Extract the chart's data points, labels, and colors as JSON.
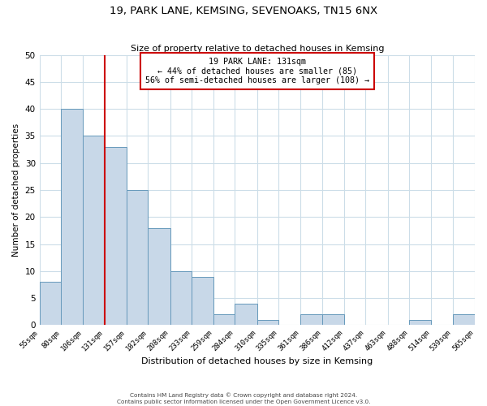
{
  "title_line1": "19, PARK LANE, KEMSING, SEVENOAKS, TN15 6NX",
  "title_line2": "Size of property relative to detached houses in Kemsing",
  "xlabel": "Distribution of detached houses by size in Kemsing",
  "ylabel": "Number of detached properties",
  "bin_edges": [
    55,
    80,
    106,
    131,
    157,
    182,
    208,
    233,
    259,
    284,
    310,
    335,
    361,
    386,
    412,
    437,
    463,
    488,
    514,
    539,
    565
  ],
  "counts": [
    8,
    40,
    35,
    33,
    25,
    18,
    10,
    9,
    2,
    4,
    1,
    0,
    2,
    2,
    0,
    0,
    0,
    1,
    0,
    2
  ],
  "bar_color": "#c8d8e8",
  "bar_edge_color": "#6699bb",
  "property_line_x": 131,
  "property_line_color": "#cc0000",
  "annotation_title": "19 PARK LANE: 131sqm",
  "annotation_line1": "← 44% of detached houses are smaller (85)",
  "annotation_line2": "56% of semi-detached houses are larger (108) →",
  "annotation_box_color": "#ffffff",
  "annotation_box_edge_color": "#cc0000",
  "ylim": [
    0,
    50
  ],
  "yticks": [
    0,
    5,
    10,
    15,
    20,
    25,
    30,
    35,
    40,
    45,
    50
  ],
  "tick_labels": [
    "55sqm",
    "80sqm",
    "106sqm",
    "131sqm",
    "157sqm",
    "182sqm",
    "208sqm",
    "233sqm",
    "259sqm",
    "284sqm",
    "310sqm",
    "335sqm",
    "361sqm",
    "386sqm",
    "412sqm",
    "437sqm",
    "463sqm",
    "488sqm",
    "514sqm",
    "539sqm",
    "565sqm"
  ],
  "footer_line1": "Contains HM Land Registry data © Crown copyright and database right 2024.",
  "footer_line2": "Contains public sector information licensed under the Open Government Licence v3.0.",
  "background_color": "#ffffff",
  "grid_color": "#ccdde8"
}
